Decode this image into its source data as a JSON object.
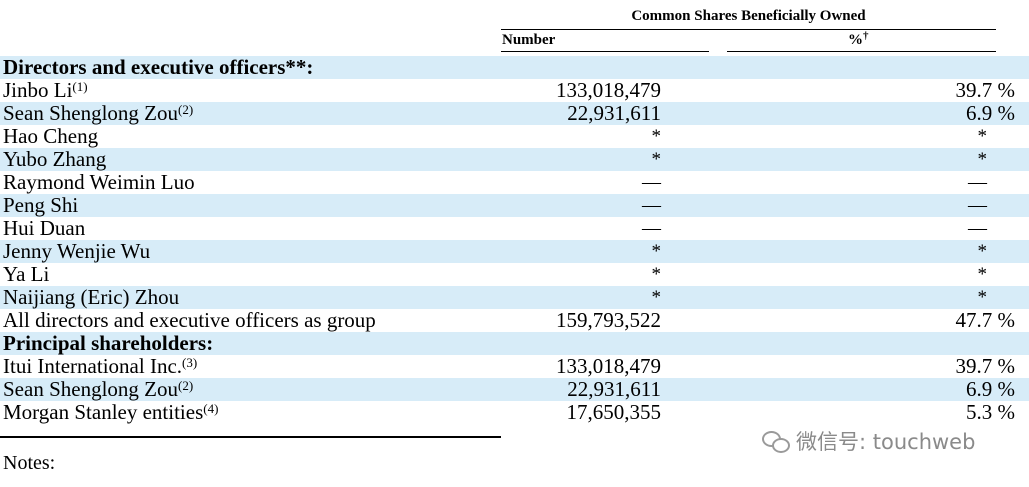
{
  "header": {
    "group_title": "Common Shares Beneficially Owned",
    "col_number": "Number",
    "col_percent": "%",
    "col_percent_mark": "†"
  },
  "rows": [
    {
      "label": "Directors and executive officers**:",
      "fn": "",
      "number": "",
      "percent": "",
      "section": true
    },
    {
      "label": "Jinbo Li",
      "fn": "(1)",
      "number": "133,018,479",
      "percent": "39.7 %"
    },
    {
      "label": "Sean Shenglong Zou",
      "fn": "(2)",
      "number": "22,931,611",
      "percent": "6.9 %"
    },
    {
      "label": "Hao Cheng",
      "fn": "",
      "number": "*",
      "percent": "*"
    },
    {
      "label": "Yubo Zhang",
      "fn": "",
      "number": "*",
      "percent": "*"
    },
    {
      "label": "Raymond Weimin Luo",
      "fn": "",
      "number": "—",
      "percent": "—"
    },
    {
      "label": "Peng Shi",
      "fn": "",
      "number": "—",
      "percent": "—"
    },
    {
      "label": "Hui Duan",
      "fn": "",
      "number": "—",
      "percent": "—"
    },
    {
      "label": "Jenny Wenjie Wu",
      "fn": "",
      "number": "*",
      "percent": "*"
    },
    {
      "label": "Ya Li",
      "fn": "",
      "number": "*",
      "percent": "*"
    },
    {
      "label": "Naijiang (Eric) Zhou",
      "fn": "",
      "number": "*",
      "percent": "*"
    },
    {
      "label": "All directors and executive officers as group",
      "fn": "",
      "number": "159,793,522",
      "percent": "47.7 %"
    },
    {
      "label": "Principal shareholders:",
      "fn": "",
      "number": "",
      "percent": "",
      "section": true
    },
    {
      "label": "Itui International Inc.",
      "fn": "(3)",
      "number": "133,018,479",
      "percent": "39.7 %"
    },
    {
      "label": "Sean Shenglong Zou",
      "fn": "(2)",
      "number": "22,931,611",
      "percent": "6.9 %"
    },
    {
      "label": "Morgan Stanley entities",
      "fn": "(4)",
      "number": "17,650,355",
      "percent": "5.3 %"
    }
  ],
  "notes_label": "Notes:",
  "watermark": {
    "icon": "wechat-icon",
    "text": "微信号: touchweb"
  }
}
